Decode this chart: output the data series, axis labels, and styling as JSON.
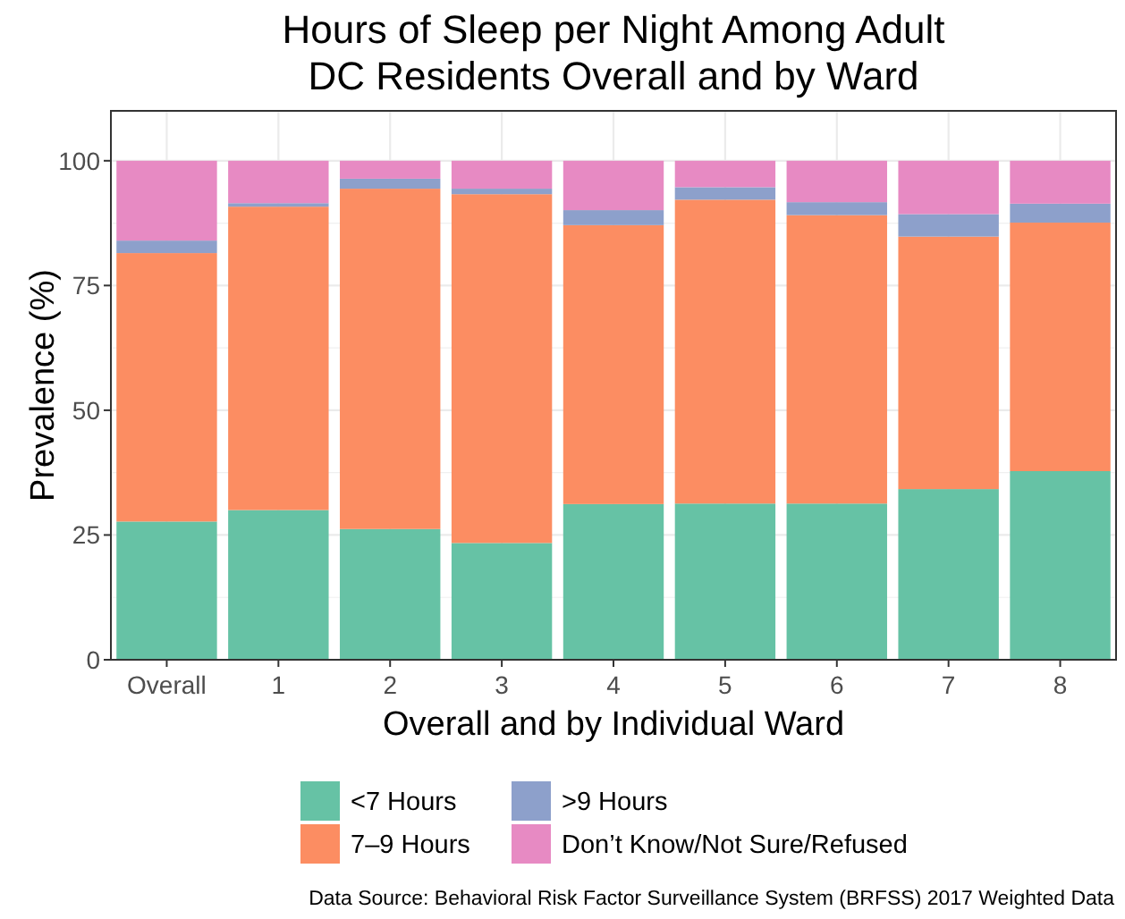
{
  "chart_data": {
    "type": "bar",
    "stacked": true,
    "title": "Hours of Sleep per Night Among Adult\nDC Residents Overall and by Ward",
    "xlabel": "Overall and by Individual Ward",
    "ylabel": "Prevalence (%)",
    "categories": [
      "Overall",
      "1",
      "2",
      "3",
      "4",
      "5",
      "6",
      "7",
      "8"
    ],
    "series": [
      {
        "name": "<7 Hours",
        "color": "#66c2a5",
        "values": [
          27.7,
          30.0,
          26.2,
          23.4,
          31.2,
          31.3,
          31.3,
          34.2,
          37.8
        ]
      },
      {
        "name": "7–9 Hours",
        "color": "#fc8d62",
        "values": [
          53.8,
          60.8,
          68.2,
          69.9,
          55.9,
          60.9,
          57.8,
          50.6,
          49.8
        ]
      },
      {
        "name": ">9 Hours",
        "color": "#8da0cb",
        "values": [
          2.5,
          0.7,
          2.0,
          1.1,
          3.0,
          2.5,
          2.6,
          4.5,
          3.8
        ]
      },
      {
        "name": "Don’t Know/Not Sure/Refused",
        "color": "#e78ac3",
        "values": [
          16.0,
          8.5,
          3.6,
          5.6,
          9.9,
          5.3,
          8.3,
          10.7,
          8.6
        ]
      }
    ],
    "ylim": [
      0,
      110
    ],
    "yticks": [
      0,
      25,
      50,
      75,
      100
    ],
    "grid": true,
    "legend": "bottom",
    "annotations": [
      "Data Source: Behavioral Risk Factor Surveillance System (BRFSS) 2017 Weighted Data"
    ]
  }
}
